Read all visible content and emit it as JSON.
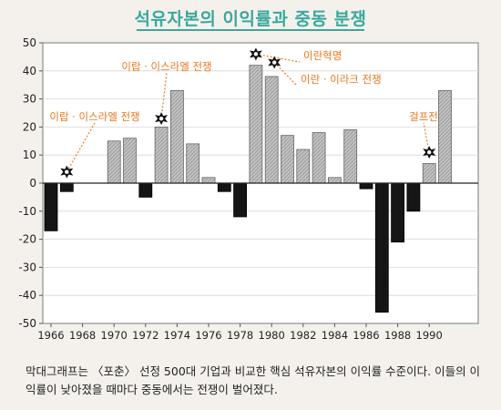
{
  "title": "석유자본의 이익률과 중동 분쟁",
  "caption": "막대그래프는 〈포춘〉 선정 500대 기업과 비교한 핵심 석유자본의 이익률 수준이다. 이들의 이익률이 낮아졌을 때마다 중동에서는 전쟁이 벌어졌다.",
  "chart_data": {
    "type": "bar",
    "title": "석유자본의 이익률과 중동 분쟁",
    "xlabel": "",
    "ylabel": "",
    "ylim": [
      -50,
      50
    ],
    "yticks": [
      50,
      40,
      30,
      20,
      10,
      0,
      -10,
      -20,
      -30,
      -40,
      -50
    ],
    "xticks": [
      "1966",
      "1968",
      "1970",
      "1972",
      "1974",
      "1976",
      "1978",
      "1980",
      "1982",
      "1984",
      "1986",
      "1988",
      "1990"
    ],
    "categories": [
      1966,
      1967,
      1968,
      1969,
      1970,
      1971,
      1972,
      1973,
      1974,
      1975,
      1976,
      1977,
      1978,
      1979,
      1980,
      1981,
      1982,
      1983,
      1984,
      1985,
      1986,
      1987,
      1988,
      1989,
      1990,
      1991
    ],
    "values": [
      -17,
      -3,
      0,
      0,
      15,
      16,
      -5,
      20,
      33,
      14,
      2,
      -3,
      -12,
      42,
      38,
      17,
      12,
      18,
      2,
      19,
      -2,
      -46,
      -21,
      -10,
      7,
      33
    ],
    "colors": {
      "positive": "#c2c2c2",
      "negative": "#151515",
      "hatch": "#8a8a8a",
      "annotation": "#e8781e"
    },
    "annotations": [
      {
        "text": "이랍 · 이스라엘 전쟁",
        "year": 1967,
        "marker_value": 4
      },
      {
        "text": "이랍 · 이스라엘 전쟁",
        "year": 1973,
        "marker_value": 23
      },
      {
        "text": "이란혁명",
        "year": 1979,
        "marker_value": 46
      },
      {
        "text": "이란 · 이라크 전쟁",
        "year": 1980,
        "marker_value": 43
      },
      {
        "text": "걸프전",
        "year": 1990,
        "marker_value": 11
      }
    ]
  }
}
